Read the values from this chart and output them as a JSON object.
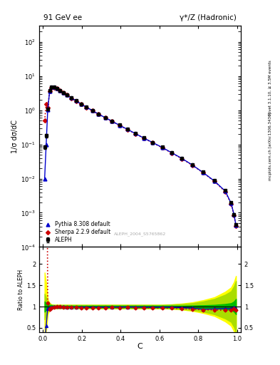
{
  "title_left": "91 GeV ee",
  "title_right": "γ*/Z (Hadronic)",
  "ylabel_main": "1/σ dσ/dC",
  "ylabel_ratio": "Ratio to ALEPH",
  "xlabel": "C",
  "watermark": "ALEPH_2004_S5765862",
  "right_label_top": "Rivet 3.1.10, ≥ 3.5M events",
  "right_label_bottom": "mcplots.cern.ch [arXiv:1306.3436]",
  "ylim_main": [
    0.0001,
    300
  ],
  "ylim_ratio": [
    0.4,
    2.4
  ],
  "aleph_x": [
    0.008,
    0.016,
    0.024,
    0.034,
    0.044,
    0.056,
    0.07,
    0.086,
    0.104,
    0.124,
    0.146,
    0.17,
    0.196,
    0.224,
    0.254,
    0.286,
    0.32,
    0.356,
    0.394,
    0.434,
    0.476,
    0.52,
    0.566,
    0.614,
    0.664,
    0.716,
    0.77,
    0.826,
    0.884,
    0.94,
    0.97,
    0.985,
    0.995
  ],
  "aleph_y": [
    0.085,
    0.18,
    1.1,
    3.8,
    4.8,
    4.7,
    4.3,
    3.8,
    3.3,
    2.8,
    2.3,
    1.9,
    1.55,
    1.25,
    1.0,
    0.78,
    0.62,
    0.48,
    0.37,
    0.28,
    0.21,
    0.155,
    0.115,
    0.083,
    0.058,
    0.04,
    0.026,
    0.016,
    0.009,
    0.0045,
    0.002,
    0.0009,
    0.00045
  ],
  "aleph_yerr": [
    0.01,
    0.02,
    0.1,
    0.15,
    0.15,
    0.12,
    0.1,
    0.09,
    0.07,
    0.06,
    0.05,
    0.04,
    0.03,
    0.025,
    0.02,
    0.016,
    0.013,
    0.01,
    0.008,
    0.006,
    0.005,
    0.004,
    0.003,
    0.002,
    0.0015,
    0.001,
    0.0007,
    0.0005,
    0.0003,
    0.0002,
    0.0001,
    6e-05,
    3e-05
  ],
  "pythia_x": [
    0.008,
    0.016,
    0.024,
    0.034,
    0.044,
    0.056,
    0.07,
    0.086,
    0.104,
    0.124,
    0.146,
    0.17,
    0.196,
    0.224,
    0.254,
    0.286,
    0.32,
    0.356,
    0.394,
    0.434,
    0.476,
    0.52,
    0.566,
    0.614,
    0.664,
    0.716,
    0.77,
    0.826,
    0.884,
    0.94,
    0.97,
    0.985,
    0.995
  ],
  "pythia_y": [
    0.01,
    0.1,
    1.05,
    3.65,
    4.75,
    4.72,
    4.32,
    3.82,
    3.28,
    2.78,
    2.28,
    1.88,
    1.53,
    1.23,
    0.98,
    0.77,
    0.61,
    0.475,
    0.365,
    0.278,
    0.208,
    0.153,
    0.113,
    0.082,
    0.057,
    0.039,
    0.025,
    0.015,
    0.0085,
    0.0043,
    0.0019,
    0.00088,
    0.00043
  ],
  "sherpa_x": [
    0.008,
    0.016,
    0.024,
    0.034,
    0.044,
    0.056,
    0.07,
    0.086,
    0.104,
    0.124,
    0.146,
    0.17,
    0.196,
    0.224,
    0.254,
    0.286,
    0.32,
    0.356,
    0.394,
    0.434,
    0.476,
    0.52,
    0.566,
    0.614,
    0.664,
    0.716,
    0.77,
    0.826,
    0.884,
    0.94,
    0.97,
    0.985,
    0.995
  ],
  "sherpa_y": [
    0.5,
    1.5,
    1.2,
    3.55,
    4.65,
    4.65,
    4.28,
    3.8,
    3.26,
    2.76,
    2.26,
    1.86,
    1.51,
    1.21,
    0.97,
    0.76,
    0.602,
    0.469,
    0.361,
    0.274,
    0.205,
    0.151,
    0.111,
    0.08,
    0.056,
    0.038,
    0.0245,
    0.0148,
    0.0083,
    0.0041,
    0.00185,
    0.00086,
    0.00041
  ],
  "pythia_band_inner": [
    0.12,
    0.08,
    0.05,
    0.04,
    0.03,
    0.02,
    0.02,
    0.02,
    0.02,
    0.02,
    0.02,
    0.02,
    0.02,
    0.02,
    0.02,
    0.02,
    0.02,
    0.02,
    0.02,
    0.02,
    0.02,
    0.02,
    0.02,
    0.02,
    0.02,
    0.02,
    0.025,
    0.03,
    0.04,
    0.06,
    0.08,
    0.12,
    0.18
  ],
  "pythia_band_outer": [
    0.3,
    0.2,
    0.1,
    0.07,
    0.05,
    0.04,
    0.04,
    0.04,
    0.04,
    0.04,
    0.04,
    0.04,
    0.04,
    0.04,
    0.04,
    0.04,
    0.04,
    0.04,
    0.04,
    0.04,
    0.04,
    0.04,
    0.04,
    0.04,
    0.05,
    0.06,
    0.08,
    0.12,
    0.18,
    0.28,
    0.36,
    0.48,
    0.6
  ],
  "sherpa_band": [
    0.8,
    0.55,
    0.18,
    0.08,
    0.05,
    0.04,
    0.04,
    0.04,
    0.04,
    0.04,
    0.04,
    0.04,
    0.04,
    0.04,
    0.04,
    0.04,
    0.04,
    0.04,
    0.04,
    0.04,
    0.04,
    0.04,
    0.04,
    0.04,
    0.05,
    0.07,
    0.1,
    0.15,
    0.22,
    0.35,
    0.45,
    0.58,
    0.72
  ],
  "colors": {
    "aleph": "black",
    "pythia": "#0000cc",
    "sherpa": "#cc0000",
    "pythia_band_inner": "#00bb00",
    "pythia_band_outer": "#aadd00",
    "sherpa_band": "#ffff00"
  },
  "background_color": "#ffffff"
}
